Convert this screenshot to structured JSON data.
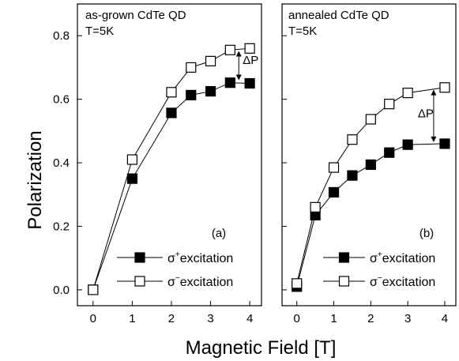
{
  "chart_data": [
    {
      "type": "line",
      "panel_label": "(a)",
      "sample_lines": [
        "as-grown CdTe QD",
        "T=5K"
      ],
      "ylabel": "Polarization",
      "xlim": [
        -0.4,
        4.3
      ],
      "ylim": [
        -0.05,
        0.9
      ],
      "xticks": [
        "0",
        "1",
        "2",
        "3",
        "4"
      ],
      "xtick_values": [
        0,
        1,
        2,
        3,
        4
      ],
      "yticks": [
        "0.0",
        "0.2",
        "0.4",
        "0.6",
        "0.8"
      ],
      "ytick_values": [
        0.0,
        0.2,
        0.4,
        0.6,
        0.8
      ],
      "series": [
        {
          "name_base": "σ",
          "name_sup": "+",
          "name_rest": "excitation",
          "marker": "filled-square",
          "x": [
            0,
            1,
            2,
            2.5,
            3,
            3.5,
            4
          ],
          "y": [
            0.0,
            0.35,
            0.557,
            0.613,
            0.625,
            0.652,
            0.65
          ]
        },
        {
          "name_base": "σ",
          "name_sup": "−",
          "name_rest": "excitation",
          "marker": "open-square",
          "x": [
            0,
            1,
            2,
            2.5,
            3,
            3.5,
            4
          ],
          "y": [
            0.0,
            0.41,
            0.622,
            0.7,
            0.72,
            0.755,
            0.76
          ]
        }
      ],
      "annotation": {
        "text": "ΔP",
        "x": 3.72,
        "y_from": 0.752,
        "y_to": 0.66
      }
    },
    {
      "type": "line",
      "panel_label": "(b)",
      "sample_lines": [
        "annealed CdTe QD",
        "T=5K"
      ],
      "ylabel": "",
      "xlim": [
        -0.4,
        4.3
      ],
      "ylim": [
        -0.05,
        0.9
      ],
      "xticks": [
        "0",
        "1",
        "2",
        "3",
        "4"
      ],
      "xtick_values": [
        0,
        1,
        2,
        3,
        4
      ],
      "yticks": [],
      "ytick_values": [
        0.0,
        0.2,
        0.4,
        0.6,
        0.8
      ],
      "series": [
        {
          "name_base": "σ",
          "name_sup": "+",
          "name_rest": "excitation",
          "marker": "filled-square",
          "x": [
            0,
            0.5,
            1,
            1.5,
            2,
            2.5,
            3,
            4
          ],
          "y": [
            0.01,
            0.235,
            0.307,
            0.36,
            0.394,
            0.432,
            0.457,
            0.46
          ]
        },
        {
          "name_base": "σ",
          "name_sup": "−",
          "name_rest": "excitation",
          "marker": "open-square",
          "x": [
            0,
            0.5,
            1,
            1.5,
            2,
            2.5,
            3,
            4
          ],
          "y": [
            0.02,
            0.26,
            0.385,
            0.473,
            0.537,
            0.585,
            0.62,
            0.637
          ]
        }
      ],
      "annotation": {
        "text": "ΔP",
        "x": 3.7,
        "y_from": 0.63,
        "y_to": 0.465
      }
    }
  ],
  "shared_xlabel": "Magnetic Field [T]"
}
